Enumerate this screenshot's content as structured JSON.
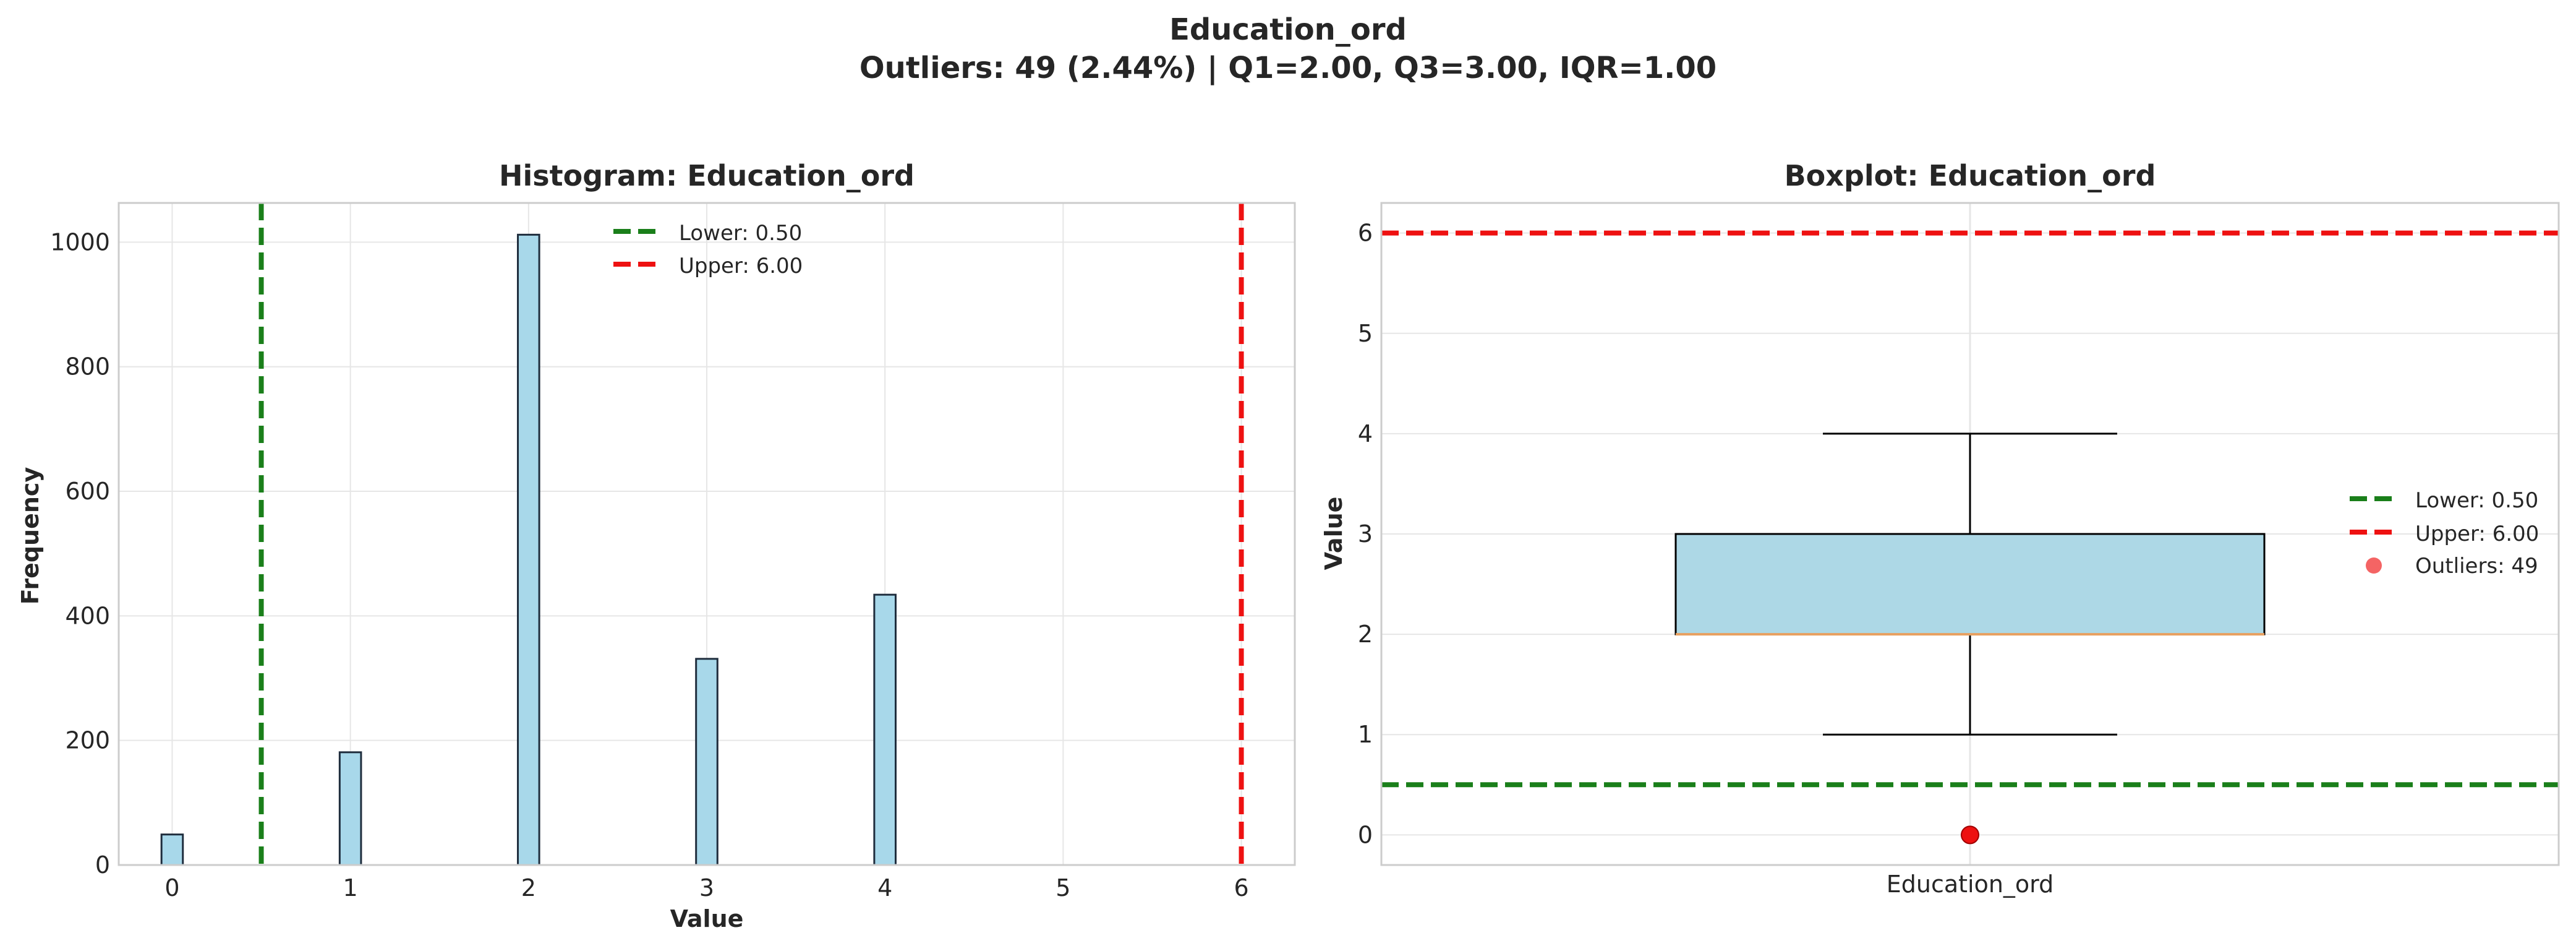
{
  "figure": {
    "suptitle_line1": "Education_ord",
    "suptitle_line2": "Outliers: 49 (2.44%) | Q1=2.00, Q3=3.00, IQR=1.00"
  },
  "colors": {
    "bar_fill": "#a8d8ea",
    "bar_edge": "#1f2d3d",
    "box_fill": "#add8e6",
    "median": "#e8a060",
    "lower": "#1a7f1a",
    "upper": "#ee1111",
    "outlier": "#ee1111",
    "grid": "#e6e6e6",
    "spine": "#cccccc"
  },
  "chart_data": [
    {
      "type": "bar",
      "title": "Histogram: Education_ord",
      "xlabel": "Value",
      "ylabel": "Frequency",
      "xlim": [
        -0.3,
        6.3
      ],
      "ylim": [
        0,
        1063
      ],
      "grid": true,
      "xticks": [
        0,
        1,
        2,
        3,
        4,
        5,
        6
      ],
      "xtick_labels": [
        "0",
        "1",
        "2",
        "3",
        "4",
        "5",
        "6"
      ],
      "yticks": [
        0,
        200,
        400,
        600,
        800,
        1000
      ],
      "ytick_labels": [
        "0",
        "200",
        "400",
        "600",
        "800",
        "1000"
      ],
      "bin_width": 0.12,
      "bars": [
        {
          "x": 0,
          "value": 49
        },
        {
          "x": 1,
          "value": 181
        },
        {
          "x": 2,
          "value": 1012
        },
        {
          "x": 3,
          "value": 331
        },
        {
          "x": 4,
          "value": 434
        }
      ],
      "reference_lines": [
        {
          "name": "Lower: 0.50",
          "value": 0.5,
          "color": "#1a7f1a",
          "style": "dashed"
        },
        {
          "name": "Upper: 6.00",
          "value": 6.0,
          "color": "#ee1111",
          "style": "dashed"
        }
      ],
      "legend_position": "upper-center"
    },
    {
      "type": "boxplot",
      "title": "Boxplot: Education_ord",
      "ylabel": "Value",
      "ylim": [
        -0.3,
        6.3
      ],
      "grid": true,
      "yticks": [
        0,
        1,
        2,
        3,
        4,
        5,
        6
      ],
      "ytick_labels": [
        "0",
        "1",
        "2",
        "3",
        "4",
        "5",
        "6"
      ],
      "category": "Education_ord",
      "box": {
        "q1": 2.0,
        "median": 2.0,
        "q3": 3.0,
        "whisker_low": 1.0,
        "whisker_high": 4.0
      },
      "outliers": [
        0
      ],
      "reference_lines": [
        {
          "name": "Lower: 0.50",
          "value": 0.5,
          "color": "#1a7f1a",
          "style": "dashed"
        },
        {
          "name": "Upper: 6.00",
          "value": 6.0,
          "color": "#ee1111",
          "style": "dashed"
        }
      ],
      "outlier_legend": "Outliers: 49",
      "legend_position": "center-right"
    }
  ]
}
